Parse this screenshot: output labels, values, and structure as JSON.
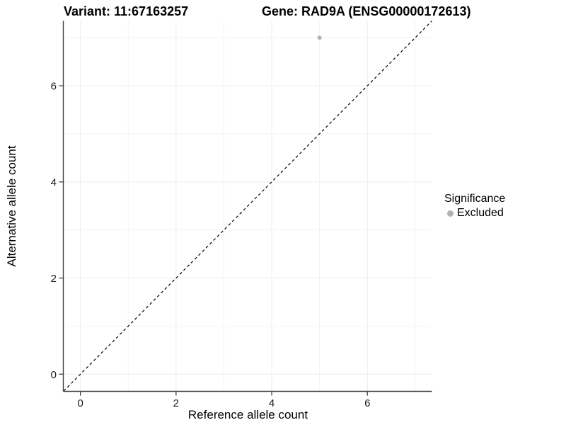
{
  "header": {
    "variant_title": "Variant: 11:67163257",
    "gene_title": "Gene: RAD9A (ENSG00000172613)"
  },
  "axes": {
    "x_label": "Reference allele count",
    "y_label": "Alternative allele count"
  },
  "legend": {
    "title": "Significance",
    "items": [
      {
        "label": "Excluded",
        "color": "#b3b3b3"
      }
    ]
  },
  "chart_data": {
    "type": "scatter",
    "title_left": "Variant: 11:67163257",
    "title_right": "Gene: RAD9A (ENSG00000172613)",
    "xlabel": "Reference allele count",
    "ylabel": "Alternative allele count",
    "xlim": [
      -0.35,
      7.35
    ],
    "ylim": [
      -0.35,
      7.35
    ],
    "x_ticks": [
      0,
      2,
      4,
      6
    ],
    "y_ticks": [
      0,
      2,
      4,
      6
    ],
    "x_minor_ticks": [
      1,
      3,
      5,
      7
    ],
    "y_minor_ticks": [
      1,
      3,
      5,
      7
    ],
    "grid": "on",
    "legend_position": "right",
    "series": [
      {
        "name": "Excluded",
        "color": "#b3b3b3",
        "points": [
          {
            "x": 5,
            "y": 7
          }
        ]
      }
    ],
    "reference_line": {
      "type": "identity y=x",
      "style": "dashed",
      "color": "#000000",
      "from": [
        -0.35,
        -0.35
      ],
      "to": [
        7.35,
        7.35
      ]
    },
    "colors": {
      "major_grid": "#ececec",
      "minor_grid": "#f3f3f3",
      "axis_line": "#404040",
      "tick_label": "#1a1a1a",
      "point": "#b3b3b3"
    }
  }
}
